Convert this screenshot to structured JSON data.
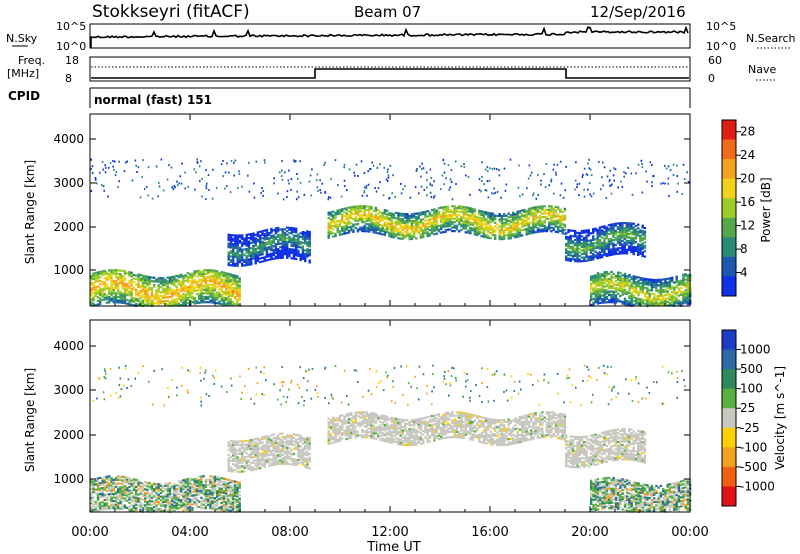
{
  "header": {
    "station": "Stokkseyri (fitACF)",
    "beam": "Beam 07",
    "date": "12/Sep/2016"
  },
  "top_panels": {
    "nsky": {
      "label": "N.Sky",
      "right_label": "N.Search",
      "ytick_top": "10^5",
      "ytick_bottom": "10^0"
    },
    "freq": {
      "label_line1": "Freq.",
      "label_line2": "[MHz]",
      "ytick_top": "18",
      "ytick_bottom": "8",
      "right_top": "60",
      "right_bottom": "0",
      "right_label": "Nave"
    },
    "cpid": {
      "label": "CPID",
      "text": "normal (fast) 151"
    }
  },
  "xaxis": {
    "label": "Time UT",
    "ticks": [
      "00:00",
      "04:00",
      "08:00",
      "12:00",
      "16:00",
      "20:00",
      "00:00"
    ]
  },
  "power_panel": {
    "ylabel": "Slant Range [km]",
    "yticks": [
      "1000",
      "2000",
      "3000",
      "4000"
    ],
    "colorbar_label": "Power [dB]",
    "colorbar_ticks": [
      "4",
      "8",
      "12",
      "16",
      "20",
      "24",
      "28"
    ],
    "colors": [
      "#1030e8",
      "#1c58b0",
      "#2a8a7a",
      "#55a84a",
      "#9ccc2a",
      "#f0d21a",
      "#f4a020",
      "#f06a1c",
      "#e01e14"
    ]
  },
  "velocity_panel": {
    "ylabel": "Slant Range [km]",
    "yticks": [
      "1000",
      "2000",
      "3000",
      "4000"
    ],
    "colorbar_label": "Velocity [m s^-1]",
    "colorbar_ticks": [
      "1000",
      "500",
      "100",
      "25",
      "-25",
      "-100",
      "-500",
      "-1000"
    ],
    "colors": [
      "#1c3cc8",
      "#2a6aa8",
      "#2e8a5a",
      "#58b040",
      "#c8c8c0",
      "#ffd000",
      "#f4a020",
      "#f06010",
      "#e01414"
    ]
  },
  "chart_data": {
    "type": "heatmap",
    "x_label": "Time UT",
    "x_range_hours": [
      0,
      24
    ],
    "y_range_km": [
      180,
      4500
    ],
    "power_colorbar_range_db": [
      0,
      30
    ],
    "velocity_colorbar_range": [
      -1000,
      1000
    ],
    "dominant_echo_bands": [
      {
        "start_hr": 0.0,
        "end_hr": 6.0,
        "range_low_km": 200,
        "range_high_km": 950,
        "power_db": 22
      },
      {
        "start_hr": 5.5,
        "end_hr": 8.8,
        "range_low_km": 1200,
        "range_high_km": 1900,
        "power_db": 10
      },
      {
        "start_hr": 9.5,
        "end_hr": 19.0,
        "range_low_km": 1800,
        "range_high_km": 2400,
        "power_db": 20
      },
      {
        "start_hr": 19.0,
        "end_hr": 22.2,
        "range_low_km": 1300,
        "range_high_km": 2000,
        "power_db": 12
      },
      {
        "start_hr": 20.0,
        "end_hr": 24.0,
        "range_low_km": 200,
        "range_high_km": 900,
        "power_db": 18
      }
    ]
  }
}
